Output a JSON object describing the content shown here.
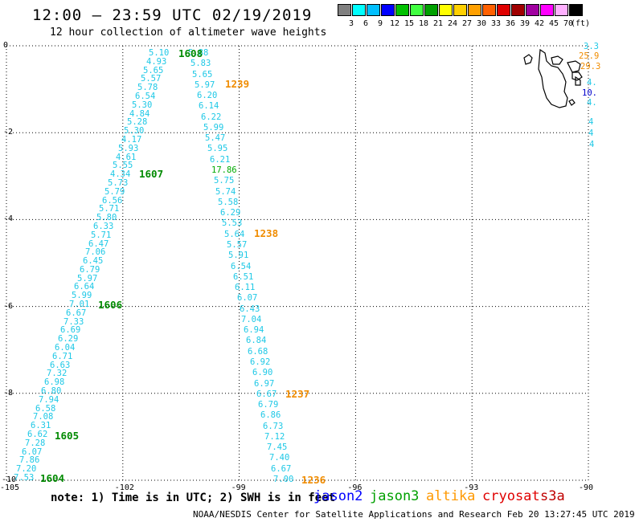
{
  "header": {
    "title": "12:00 — 23:59 UTC 02/19/2019",
    "subtitle": "12 hour collection of altimeter wave heights"
  },
  "legend": {
    "unit": "(ft)",
    "ticks": [
      "3",
      "6",
      "9",
      "12",
      "15",
      "18",
      "21",
      "24",
      "27",
      "30",
      "33",
      "36",
      "39",
      "42",
      "45",
      "70"
    ],
    "colors": [
      "#808080",
      "#00ffff",
      "#00bfff",
      "#0000ff",
      "#00c000",
      "#40ff40",
      "#00a000",
      "#ffff00",
      "#ffd000",
      "#ffa000",
      "#ff6000",
      "#e00000",
      "#a00000",
      "#a000a0",
      "#ff00ff",
      "#ffb0ff",
      "#000000"
    ]
  },
  "axes": {
    "lon_labels": [
      "-105",
      "-102",
      "-99",
      "-96",
      "-93",
      "-90"
    ],
    "lat_labels": [
      "0",
      "-2",
      "-4",
      "-6",
      "-8",
      "-10"
    ]
  },
  "tracks": {
    "left_track": [
      "5.10",
      "4.93",
      "5.65",
      "5.57",
      "5.78",
      "6.54",
      "5.30",
      "4.84",
      "5.28",
      "5.30",
      "4.17",
      "5.93",
      "4.61",
      "5.55",
      "4.34",
      "5.73",
      "5.79",
      "6.56",
      "5.71",
      "5.80",
      "6.33",
      "5.71",
      "6.47",
      "7.06",
      "6.45",
      "6.79",
      "5.97",
      "6.64",
      "5.99",
      "7.01",
      "6.67",
      "7.33",
      "6.69",
      "6.29",
      "6.04",
      "6.71",
      "6.63",
      "7.32",
      "6.98",
      "6.80",
      "7.94",
      "6.58",
      "7.08",
      "6.31",
      "6.62",
      "7.28",
      "6.07",
      "7.86",
      "7.20",
      "7.53"
    ],
    "right_track": [
      "5.88",
      "5.83",
      "5.65",
      "5.97",
      "6.20",
      "6.14",
      "6.22",
      "5.99",
      "5.47",
      "5.95",
      "6.21",
      "17.86",
      "5.75",
      "5.74",
      "5.58",
      "6.29",
      "5.53",
      "5.64",
      "5.57",
      "5.91",
      "6.54",
      "6.51",
      "6.11",
      "6.07",
      "6.43",
      "7.04",
      "6.94",
      "6.84",
      "6.68",
      "6.92",
      "6.90",
      "6.97",
      "6.67",
      "6.79",
      "6.86",
      "6.73",
      "7.12",
      "7.45",
      "7.40",
      "6.67",
      "7.00"
    ],
    "highlight_value": "17.86"
  },
  "times": {
    "left": [
      "1608",
      "1607",
      "1606",
      "1605",
      "1604"
    ],
    "right": [
      "1239",
      "1238",
      "1237",
      "1236"
    ]
  },
  "right_edge_values": [
    "3.3",
    "25.9",
    "29.3",
    "4.",
    "10.",
    "4.",
    "4",
    "4",
    "4"
  ],
  "footer": {
    "note": "note: 1) Time is in UTC; 2) SWH is in feet",
    "satellites": [
      {
        "name": "jason2",
        "color": "#0000ff"
      },
      {
        "name": "jason3",
        "color": "#00a000"
      },
      {
        "name": "altika",
        "color": "#ff9900"
      },
      {
        "name": "cryosat",
        "color": "#e00000"
      },
      {
        "name": "s3a",
        "color": "#c00000"
      }
    ],
    "credit": "NOAA/NESDIS Center for Satellite Applications and Research    Feb 20 13:27:45 UTC 2019"
  }
}
